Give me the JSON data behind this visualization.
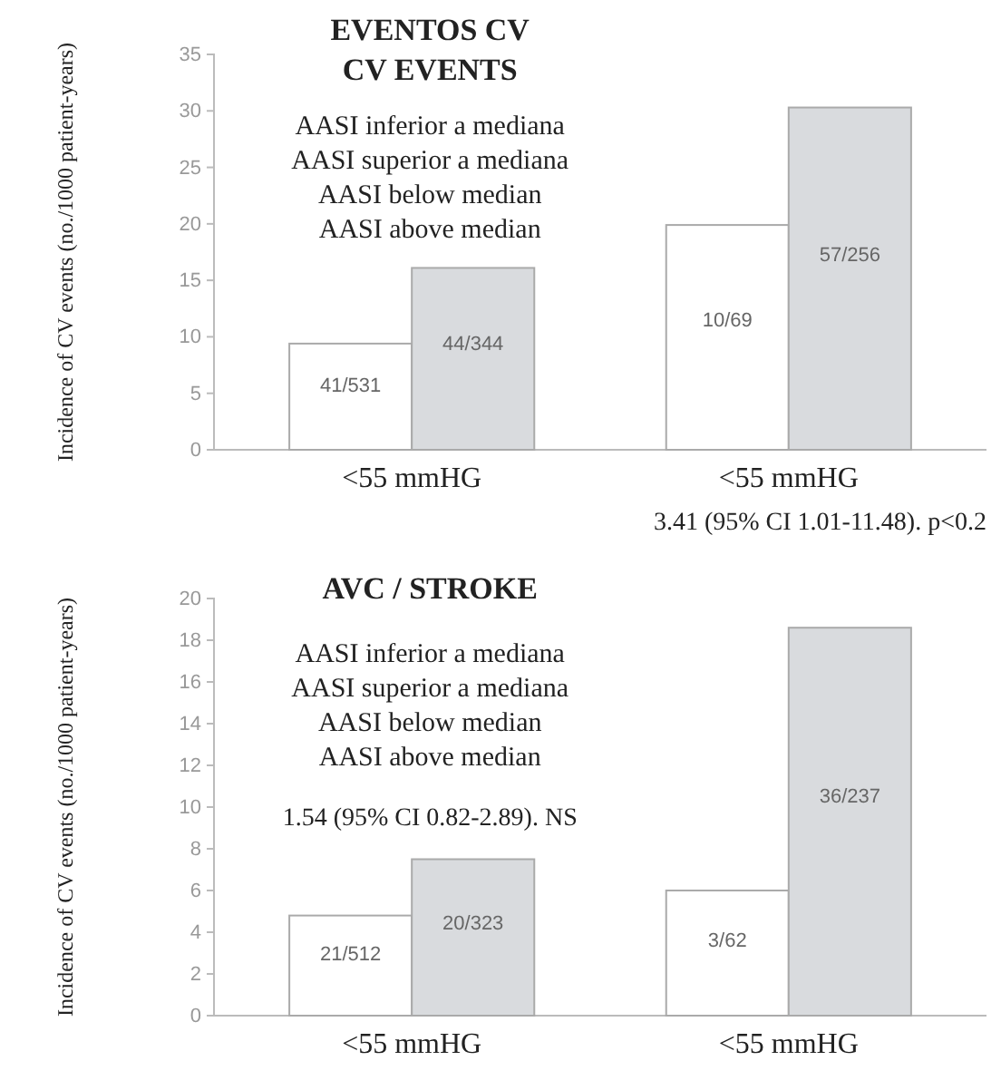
{
  "chart_data": [
    {
      "type": "bar",
      "title": "EVENTOS CV",
      "subtitle": "CV EVENTS",
      "ylabel": "Incidence of CV events (no./1000 patient-years)",
      "categories": [
        "<55 mmHG",
        "<55 mmHG"
      ],
      "ylim": [
        0,
        35
      ],
      "yticks": [
        0,
        5,
        10,
        15,
        20,
        25,
        30,
        35
      ],
      "grid": false,
      "series": [
        {
          "color": "#ffffff",
          "values": [
            9.4,
            19.9
          ],
          "value_labels": [
            "41/531",
            "10/69"
          ]
        },
        {
          "color": "#d9dbde",
          "values": [
            16.1,
            30.3
          ],
          "value_labels": [
            "44/344",
            "57/256"
          ]
        }
      ],
      "annotations": [
        "AASI inferior a mediana",
        "AASI superior a mediana",
        "AASI below median",
        "AASI above median",
        "3.41 (95% CI 1.01-11.48). p<0.2"
      ]
    },
    {
      "type": "bar",
      "title": "AVC / STROKE",
      "ylabel": "Incidence of CV events (no./1000 patient-years)",
      "categories": [
        "<55 mmHG",
        "<55 mmHG"
      ],
      "ylim": [
        0,
        20
      ],
      "yticks": [
        0,
        2,
        4,
        6,
        8,
        10,
        12,
        14,
        16,
        18,
        20
      ],
      "grid": false,
      "series": [
        {
          "color": "#ffffff",
          "values": [
            4.8,
            6.0
          ],
          "value_labels": [
            "21/512",
            "3/62"
          ]
        },
        {
          "color": "#d9dbde",
          "values": [
            7.5,
            18.6
          ],
          "value_labels": [
            "20/323",
            "36/237"
          ]
        }
      ],
      "annotations": [
        "AASI inferior a mediana",
        "AASI superior a mediana",
        "AASI below median",
        "AASI above median",
        "1.54 (95% CI 0.82-2.89). NS"
      ]
    }
  ]
}
